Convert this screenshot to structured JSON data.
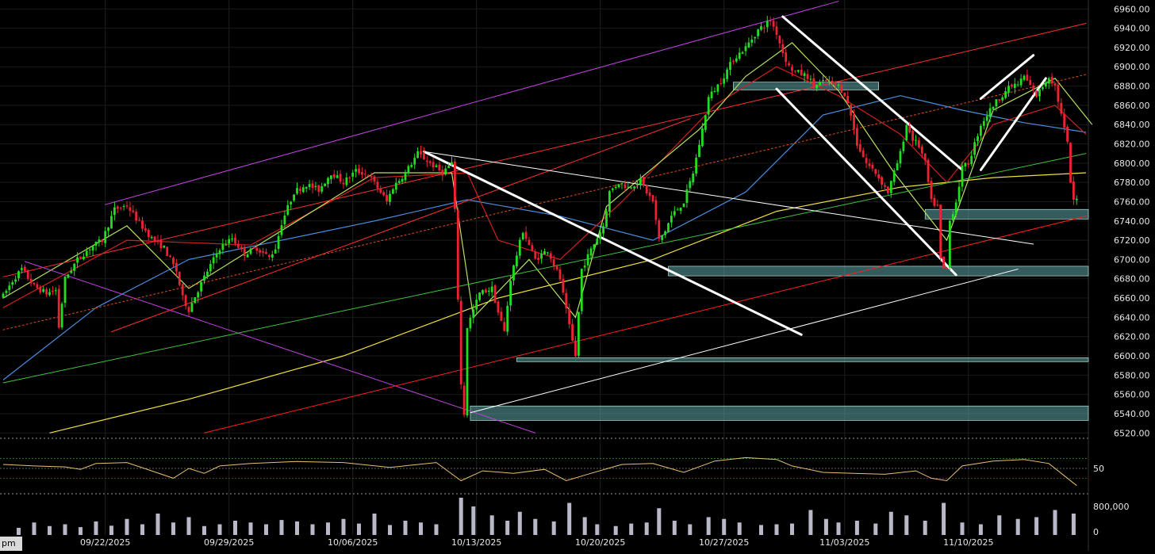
{
  "chart_data": {
    "type": "candlestick",
    "price_axis": {
      "range": [
        6512,
        6966
      ],
      "ticks": [
        6960,
        6940,
        6920,
        6900,
        6880,
        6860,
        6840,
        6820,
        6800,
        6780,
        6760,
        6740,
        6720,
        6700,
        6680,
        6660,
        6640,
        6620,
        6600,
        6580,
        6560,
        6540,
        6520
      ],
      "tick_labels": [
        "6960.00",
        "6940.00",
        "6920.00",
        "6900.00",
        "6880.00",
        "6860.00",
        "6840.00",
        "6820.00",
        "6800.00",
        "6780.00",
        "6760.00",
        "6740.00",
        "6720.00",
        "6700.00",
        "6680.00",
        "6660.00",
        "6640.00",
        "6620.00",
        "6600.00",
        "6580.00",
        "6560.00",
        "6540.00",
        "6520.00"
      ]
    },
    "x_axis": {
      "unit": "bar index",
      "bar_count": 320,
      "date_ticks": [
        {
          "label": "09/22/2025",
          "bar": 33
        },
        {
          "label": "09/29/2025",
          "bar": 73
        },
        {
          "label": "10/06/2025",
          "bar": 113
        },
        {
          "label": "10/13/2025",
          "bar": 153
        },
        {
          "label": "10/20/2025",
          "bar": 193
        },
        {
          "label": "10/27/2025",
          "bar": 233
        },
        {
          "label": "11/03/2025",
          "bar": 272
        },
        {
          "label": "11/10/2025",
          "bar": 312
        }
      ],
      "partial_label": "pm"
    },
    "price_anchors": [
      [
        0,
        6662
      ],
      [
        3,
        6678
      ],
      [
        6,
        6690
      ],
      [
        10,
        6672
      ],
      [
        14,
        6665
      ],
      [
        17,
        6668
      ],
      [
        18,
        6630
      ],
      [
        20,
        6680
      ],
      [
        24,
        6700
      ],
      [
        28,
        6712
      ],
      [
        32,
        6720
      ],
      [
        36,
        6752
      ],
      [
        40,
        6756
      ],
      [
        44,
        6738
      ],
      [
        48,
        6722
      ],
      [
        52,
        6712
      ],
      [
        56,
        6688
      ],
      [
        58,
        6660
      ],
      [
        60,
        6648
      ],
      [
        62,
        6662
      ],
      [
        66,
        6688
      ],
      [
        70,
        6712
      ],
      [
        74,
        6722
      ],
      [
        78,
        6706
      ],
      [
        82,
        6712
      ],
      [
        86,
        6702
      ],
      [
        88,
        6712
      ],
      [
        90,
        6738
      ],
      [
        94,
        6770
      ],
      [
        98,
        6778
      ],
      [
        102,
        6772
      ],
      [
        106,
        6790
      ],
      [
        110,
        6780
      ],
      [
        114,
        6792
      ],
      [
        118,
        6788
      ],
      [
        122,
        6770
      ],
      [
        124,
        6760
      ],
      [
        126,
        6775
      ],
      [
        130,
        6790
      ],
      [
        134,
        6810
      ],
      [
        138,
        6800
      ],
      [
        142,
        6790
      ],
      [
        145,
        6800
      ],
      [
        146,
        6750
      ],
      [
        148,
        6570
      ],
      [
        149,
        6540
      ],
      [
        150,
        6630
      ],
      [
        154,
        6665
      ],
      [
        158,
        6670
      ],
      [
        160,
        6645
      ],
      [
        162,
        6625
      ],
      [
        164,
        6680
      ],
      [
        168,
        6730
      ],
      [
        172,
        6700
      ],
      [
        176,
        6710
      ],
      [
        180,
        6680
      ],
      [
        183,
        6630
      ],
      [
        185,
        6600
      ],
      [
        187,
        6690
      ],
      [
        190,
        6710
      ],
      [
        194,
        6735
      ],
      [
        196,
        6770
      ],
      [
        199,
        6780
      ],
      [
        202,
        6775
      ],
      [
        206,
        6782
      ],
      [
        208,
        6770
      ],
      [
        210,
        6760
      ],
      [
        212,
        6720
      ],
      [
        214,
        6730
      ],
      [
        216,
        6745
      ],
      [
        220,
        6760
      ],
      [
        223,
        6790
      ],
      [
        226,
        6835
      ],
      [
        228,
        6868
      ],
      [
        232,
        6885
      ],
      [
        236,
        6908
      ],
      [
        240,
        6920
      ],
      [
        244,
        6938
      ],
      [
        248,
        6948
      ],
      [
        250,
        6935
      ],
      [
        252,
        6915
      ],
      [
        254,
        6900
      ],
      [
        256,
        6895
      ],
      [
        260,
        6890
      ],
      [
        262,
        6880
      ],
      [
        266,
        6885
      ],
      [
        270,
        6880
      ],
      [
        272,
        6872
      ],
      [
        274,
        6850
      ],
      [
        276,
        6820
      ],
      [
        279,
        6800
      ],
      [
        282,
        6790
      ],
      [
        284,
        6780
      ],
      [
        286,
        6770
      ],
      [
        288,
        6790
      ],
      [
        290,
        6810
      ],
      [
        292,
        6840
      ],
      [
        294,
        6825
      ],
      [
        296,
        6818
      ],
      [
        298,
        6800
      ],
      [
        300,
        6760
      ],
      [
        302,
        6755
      ],
      [
        303,
        6700
      ],
      [
        304,
        6690
      ],
      [
        305,
        6690
      ],
      [
        306,
        6740
      ],
      [
        308,
        6760
      ],
      [
        310,
        6795
      ],
      [
        312,
        6800
      ],
      [
        316,
        6840
      ],
      [
        320,
        6860
      ],
      [
        324,
        6875
      ],
      [
        326,
        6880
      ],
      [
        328,
        6882
      ],
      [
        330,
        6890
      ],
      [
        332,
        6880
      ],
      [
        334,
        6870
      ],
      [
        336,
        6880
      ],
      [
        338,
        6890
      ],
      [
        340,
        6880
      ],
      [
        342,
        6850
      ],
      [
        344,
        6820
      ],
      [
        345,
        6780
      ],
      [
        346,
        6760
      ],
      [
        347,
        6762
      ]
    ],
    "support_zones": [
      {
        "from_bar": 298,
        "to_price": [
          6742,
          6752
        ],
        "color": "#5fa8a8"
      },
      {
        "from_bar": 215,
        "to_price": [
          6683,
          6693
        ],
        "color": "#5fa8a8"
      },
      {
        "from_bar": 166,
        "to_price": [
          6594,
          6598
        ],
        "color": "#5fa8a8"
      },
      {
        "from_bar": 151,
        "to_price": [
          6533,
          6548
        ],
        "color": "#5fa8a8"
      },
      {
        "from_bar": 236,
        "to_bar": 283,
        "to_price": [
          6876,
          6884
        ],
        "color": "#5fa8a8"
      }
    ],
    "moving_averages": [
      {
        "color": "#f0e040",
        "points": [
          [
            15,
            6520
          ],
          [
            60,
            6555
          ],
          [
            110,
            6600
          ],
          [
            160,
            6660
          ],
          [
            210,
            6700
          ],
          [
            250,
            6750
          ],
          [
            290,
            6775
          ],
          [
            320,
            6785
          ],
          [
            350,
            6790
          ]
        ]
      },
      {
        "color": "#4a8fe0",
        "points": [
          [
            0,
            6575
          ],
          [
            30,
            6650
          ],
          [
            60,
            6700
          ],
          [
            90,
            6720
          ],
          [
            120,
            6740
          ],
          [
            150,
            6762
          ],
          [
            180,
            6745
          ],
          [
            210,
            6720
          ],
          [
            240,
            6770
          ],
          [
            265,
            6850
          ],
          [
            290,
            6870
          ],
          [
            310,
            6855
          ],
          [
            330,
            6842
          ],
          [
            350,
            6832
          ]
        ]
      },
      {
        "color": "#d02020",
        "points": [
          [
            0,
            6650
          ],
          [
            40,
            6720
          ],
          [
            80,
            6715
          ],
          [
            120,
            6785
          ],
          [
            150,
            6790
          ],
          [
            160,
            6720
          ],
          [
            180,
            6700
          ],
          [
            200,
            6760
          ],
          [
            230,
            6860
          ],
          [
            250,
            6900
          ],
          [
            270,
            6870
          ],
          [
            290,
            6830
          ],
          [
            305,
            6780
          ],
          [
            320,
            6840
          ],
          [
            340,
            6860
          ],
          [
            350,
            6830
          ]
        ]
      },
      {
        "color": "#b8e060",
        "points": [
          [
            0,
            6660
          ],
          [
            40,
            6735
          ],
          [
            60,
            6670
          ],
          [
            80,
            6710
          ],
          [
            120,
            6790
          ],
          [
            145,
            6790
          ],
          [
            152,
            6640
          ],
          [
            170,
            6700
          ],
          [
            185,
            6640
          ],
          [
            195,
            6755
          ],
          [
            225,
            6835
          ],
          [
            240,
            6890
          ],
          [
            255,
            6925
          ],
          [
            270,
            6875
          ],
          [
            288,
            6790
          ],
          [
            305,
            6720
          ],
          [
            320,
            6855
          ],
          [
            340,
            6888
          ],
          [
            352,
            6840
          ]
        ]
      }
    ],
    "trend_lines": [
      {
        "color": "#c040e0",
        "width": 1,
        "from": [
          33,
          6757
        ],
        "to": [
          270,
          6968
        ]
      },
      {
        "color": "#c040e0",
        "width": 1,
        "from": [
          7,
          6698
        ],
        "to": [
          172,
          6520
        ]
      },
      {
        "color": "#ff3030",
        "width": 1,
        "from": [
          0,
          6682
        ],
        "to": [
          350,
          6945
        ]
      },
      {
        "color": "#ff3030",
        "width": 1,
        "from": [
          35,
          6625
        ],
        "to": [
          222,
          6846
        ]
      },
      {
        "color": "#e05020",
        "width": 1,
        "dash": "2,3",
        "from": [
          0,
          6627
        ],
        "to": [
          350,
          6892
        ]
      },
      {
        "color": "#ff2020",
        "width": 1,
        "from": [
          65,
          6520
        ],
        "to": [
          350,
          6745
        ]
      },
      {
        "color": "#40c040",
        "width": 1,
        "from": [
          0,
          6572
        ],
        "to": [
          350,
          6810
        ]
      },
      {
        "color": "#ffffff",
        "width": 1,
        "from": [
          136,
          6812
        ],
        "to": [
          333,
          6716
        ]
      },
      {
        "color": "#ffffff",
        "width": 1,
        "from": [
          151,
          6541
        ],
        "to": [
          328,
          6690
        ]
      },
      {
        "color": "#ffffff",
        "width": 3,
        "from": [
          136,
          6812
        ],
        "to": [
          258,
          6622
        ]
      },
      {
        "color": "#ffffff",
        "width": 3,
        "from": [
          252,
          6952
        ],
        "to": [
          310,
          6793
        ]
      },
      {
        "color": "#ffffff",
        "width": 3,
        "from": [
          250,
          6877
        ],
        "to": [
          308,
          6684
        ]
      },
      {
        "color": "#ffffff",
        "width": 3,
        "from": [
          316,
          6867
        ],
        "to": [
          333,
          6912
        ]
      },
      {
        "color": "#ffffff",
        "width": 3,
        "from": [
          316,
          6793
        ],
        "to": [
          337,
          6888
        ]
      }
    ],
    "rsi": {
      "tick_labels": [
        "50"
      ],
      "reference_levels": [
        70,
        50,
        30
      ],
      "points": [
        [
          0,
          58
        ],
        [
          10,
          55
        ],
        [
          20,
          53
        ],
        [
          25,
          48
        ],
        [
          30,
          60
        ],
        [
          40,
          62
        ],
        [
          48,
          45
        ],
        [
          55,
          30
        ],
        [
          60,
          50
        ],
        [
          65,
          40
        ],
        [
          70,
          55
        ],
        [
          80,
          60
        ],
        [
          95,
          64
        ],
        [
          110,
          62
        ],
        [
          125,
          52
        ],
        [
          140,
          62
        ],
        [
          148,
          25
        ],
        [
          155,
          45
        ],
        [
          165,
          40
        ],
        [
          175,
          48
        ],
        [
          182,
          25
        ],
        [
          190,
          40
        ],
        [
          200,
          58
        ],
        [
          210,
          60
        ],
        [
          220,
          42
        ],
        [
          230,
          65
        ],
        [
          240,
          72
        ],
        [
          250,
          68
        ],
        [
          255,
          55
        ],
        [
          265,
          42
        ],
        [
          275,
          40
        ],
        [
          285,
          38
        ],
        [
          295,
          45
        ],
        [
          300,
          30
        ],
        [
          305,
          25
        ],
        [
          310,
          55
        ],
        [
          320,
          65
        ],
        [
          330,
          68
        ],
        [
          338,
          60
        ],
        [
          342,
          40
        ],
        [
          347,
          15
        ]
      ]
    },
    "volume": {
      "tick_labels": [
        "800,000",
        "0"
      ],
      "max": 1000000,
      "bars": [
        [
          5,
          200000
        ],
        [
          10,
          350000
        ],
        [
          15,
          250000
        ],
        [
          20,
          300000
        ],
        [
          25,
          220000
        ],
        [
          30,
          380000
        ],
        [
          35,
          260000
        ],
        [
          40,
          450000
        ],
        [
          45,
          300000
        ],
        [
          50,
          600000
        ],
        [
          55,
          350000
        ],
        [
          60,
          500000
        ],
        [
          65,
          250000
        ],
        [
          70,
          300000
        ],
        [
          75,
          400000
        ],
        [
          80,
          350000
        ],
        [
          85,
          300000
        ],
        [
          90,
          420000
        ],
        [
          95,
          380000
        ],
        [
          100,
          300000
        ],
        [
          105,
          350000
        ],
        [
          110,
          450000
        ],
        [
          115,
          320000
        ],
        [
          120,
          600000
        ],
        [
          125,
          280000
        ],
        [
          130,
          400000
        ],
        [
          135,
          350000
        ],
        [
          140,
          300000
        ],
        [
          148,
          1200000
        ],
        [
          152,
          800000
        ],
        [
          158,
          550000
        ],
        [
          163,
          400000
        ],
        [
          167,
          650000
        ],
        [
          172,
          450000
        ],
        [
          178,
          380000
        ],
        [
          183,
          900000
        ],
        [
          188,
          500000
        ],
        [
          192,
          300000
        ],
        [
          198,
          250000
        ],
        [
          203,
          320000
        ],
        [
          208,
          350000
        ],
        [
          212,
          750000
        ],
        [
          217,
          400000
        ],
        [
          222,
          300000
        ],
        [
          228,
          500000
        ],
        [
          233,
          450000
        ],
        [
          238,
          350000
        ],
        [
          245,
          280000
        ],
        [
          250,
          300000
        ],
        [
          255,
          320000
        ],
        [
          261,
          700000
        ],
        [
          266,
          450000
        ],
        [
          270,
          350000
        ],
        [
          276,
          400000
        ],
        [
          282,
          320000
        ],
        [
          287,
          650000
        ],
        [
          292,
          550000
        ],
        [
          298,
          400000
        ],
        [
          304,
          900000
        ],
        [
          310,
          350000
        ],
        [
          316,
          300000
        ],
        [
          322,
          550000
        ],
        [
          328,
          450000
        ],
        [
          334,
          500000
        ],
        [
          340,
          700000
        ],
        [
          346,
          600000
        ]
      ]
    }
  }
}
